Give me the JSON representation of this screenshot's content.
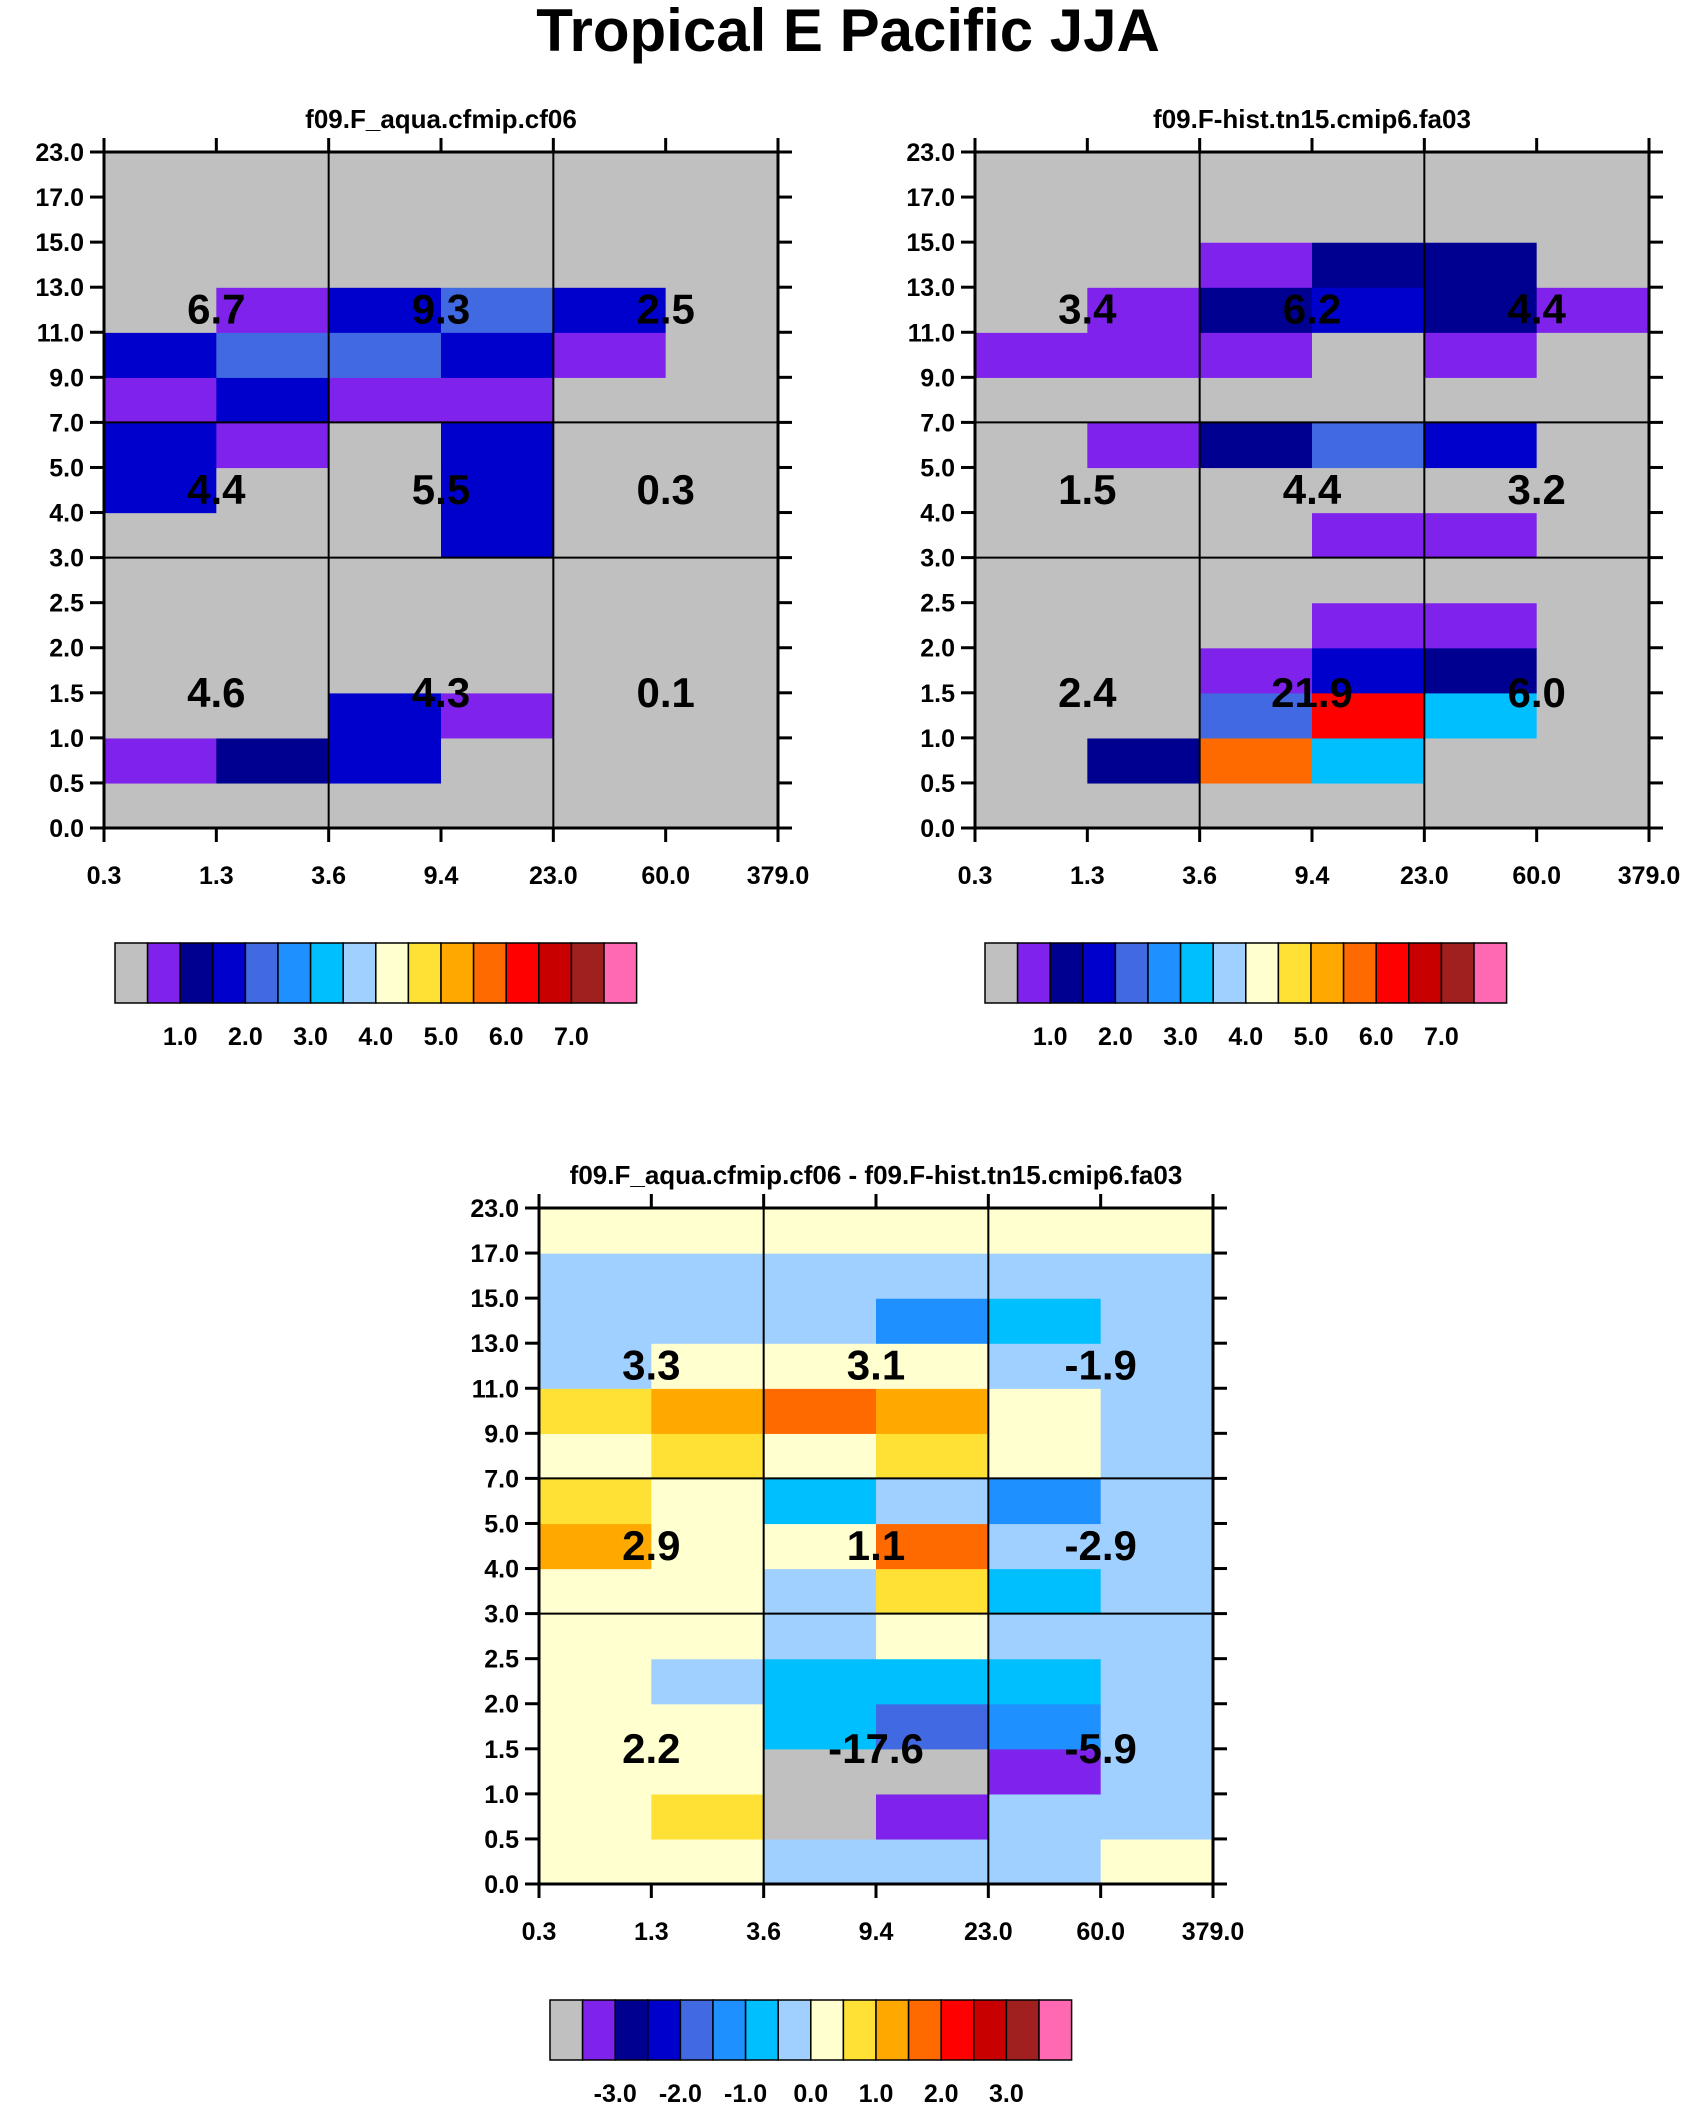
{
  "figure_title": "Tropical E Pacific JJA",
  "chart_data": [
    {
      "type": "heatmap",
      "title": "f09.F_aqua.cfmip.cf06",
      "xlabel": "",
      "ylabel": "",
      "x_ticks": [
        "0.3",
        "1.3",
        "3.6",
        "9.4",
        "23.0",
        "60.0",
        "379.0"
      ],
      "y_ticks": [
        "0.0",
        "0.5",
        "1.0",
        "1.5",
        "2.0",
        "2.5",
        "3.0",
        "4.0",
        "5.0",
        "7.0",
        "9.0",
        "11.0",
        "13.0",
        "15.0",
        "17.0",
        "23.0"
      ],
      "colorbar": {
        "colors": [
          "#C0C0C0",
          "#7F22EC",
          "#000090",
          "#0000CD",
          "#4169E1",
          "#1E90FF",
          "#00BFFF",
          "#A0D0FF",
          "#FFFFD0",
          "#FFE135",
          "#FFA800",
          "#FF6A00",
          "#FF0000",
          "#C80000",
          "#A02020",
          "#FF69B4"
        ],
        "labels": [
          "1.0",
          "2.0",
          "3.0",
          "4.0",
          "5.0",
          "6.0",
          "7.0"
        ]
      },
      "cells": [
        [
          0,
          0,
          0,
          0,
          0,
          0
        ],
        [
          1,
          2,
          3,
          0,
          0,
          0
        ],
        [
          0,
          0,
          3,
          1,
          0,
          0
        ],
        [
          0,
          0,
          0,
          0,
          0,
          0
        ],
        [
          0,
          0,
          0,
          0,
          0,
          0
        ],
        [
          0,
          0,
          0,
          0,
          0,
          0
        ],
        [
          0,
          0,
          0,
          3,
          0,
          0
        ],
        [
          3,
          0,
          0,
          3,
          0,
          0
        ],
        [
          3,
          1,
          0,
          3,
          0,
          0
        ],
        [
          1,
          3,
          1,
          1,
          0,
          0
        ],
        [
          3,
          4,
          4,
          3,
          1,
          0
        ],
        [
          0,
          1,
          3,
          4,
          3,
          0
        ],
        [
          0,
          0,
          0,
          0,
          0,
          0
        ],
        [
          0,
          0,
          0,
          0,
          0,
          0
        ],
        [
          0,
          0,
          0,
          0,
          0,
          0
        ]
      ],
      "region_values": [
        [
          "4.6",
          "4.3",
          "0.1"
        ],
        [
          "4.4",
          "5.5",
          "0.3"
        ],
        [
          "6.7",
          "9.3",
          "2.5"
        ]
      ]
    },
    {
      "type": "heatmap",
      "title": "f09.F-hist.tn15.cmip6.fa03",
      "xlabel": "",
      "ylabel": "",
      "x_ticks": [
        "0.3",
        "1.3",
        "3.6",
        "9.4",
        "23.0",
        "60.0",
        "379.0"
      ],
      "y_ticks": [
        "0.0",
        "0.5",
        "1.0",
        "1.5",
        "2.0",
        "2.5",
        "3.0",
        "4.0",
        "5.0",
        "7.0",
        "9.0",
        "11.0",
        "13.0",
        "15.0",
        "17.0",
        "23.0"
      ],
      "colorbar": {
        "colors": [
          "#C0C0C0",
          "#7F22EC",
          "#000090",
          "#0000CD",
          "#4169E1",
          "#1E90FF",
          "#00BFFF",
          "#A0D0FF",
          "#FFFFD0",
          "#FFE135",
          "#FFA800",
          "#FF6A00",
          "#FF0000",
          "#C80000",
          "#A02020",
          "#FF69B4"
        ],
        "labels": [
          "1.0",
          "2.0",
          "3.0",
          "4.0",
          "5.0",
          "6.0",
          "7.0"
        ]
      },
      "cells": [
        [
          0,
          0,
          0,
          0,
          0,
          0
        ],
        [
          0,
          2,
          11,
          6,
          0,
          0
        ],
        [
          0,
          0,
          4,
          12,
          6,
          0
        ],
        [
          0,
          0,
          1,
          3,
          2,
          0
        ],
        [
          0,
          0,
          0,
          1,
          1,
          0
        ],
        [
          0,
          0,
          0,
          0,
          0,
          0
        ],
        [
          0,
          0,
          0,
          1,
          1,
          0
        ],
        [
          0,
          0,
          0,
          0,
          0,
          0
        ],
        [
          0,
          1,
          2,
          4,
          3,
          0
        ],
        [
          0,
          0,
          0,
          0,
          0,
          0
        ],
        [
          1,
          1,
          1,
          0,
          1,
          0
        ],
        [
          0,
          1,
          2,
          3,
          2,
          1
        ],
        [
          0,
          0,
          1,
          2,
          2,
          0
        ],
        [
          0,
          0,
          0,
          0,
          0,
          0
        ],
        [
          0,
          0,
          0,
          0,
          0,
          0
        ]
      ],
      "region_values": [
        [
          "2.4",
          "21.9",
          "6.0"
        ],
        [
          "1.5",
          "4.4",
          "3.2"
        ],
        [
          "3.4",
          "6.2",
          "4.4"
        ]
      ]
    },
    {
      "type": "heatmap",
      "title": "f09.F_aqua.cfmip.cf06 - f09.F-hist.tn15.cmip6.fa03",
      "xlabel": "",
      "ylabel": "",
      "x_ticks": [
        "0.3",
        "1.3",
        "3.6",
        "9.4",
        "23.0",
        "60.0",
        "379.0"
      ],
      "y_ticks": [
        "0.0",
        "0.5",
        "1.0",
        "1.5",
        "2.0",
        "2.5",
        "3.0",
        "4.0",
        "5.0",
        "7.0",
        "9.0",
        "11.0",
        "13.0",
        "15.0",
        "17.0",
        "23.0"
      ],
      "colorbar": {
        "colors": [
          "#C0C0C0",
          "#7F22EC",
          "#000090",
          "#0000CD",
          "#4169E1",
          "#1E90FF",
          "#00BFFF",
          "#A0D0FF",
          "#FFFFD0",
          "#FFE135",
          "#FFA800",
          "#FF6A00",
          "#FF0000",
          "#C80000",
          "#A02020",
          "#FF69B4"
        ],
        "labels": [
          "-3.0",
          "-2.0",
          "-1.0",
          "0.0",
          "1.0",
          "2.0",
          "3.0"
        ]
      },
      "cells": [
        [
          8,
          8,
          7,
          7,
          7,
          8
        ],
        [
          8,
          9,
          0,
          1,
          7,
          7
        ],
        [
          8,
          8,
          0,
          0,
          1,
          7
        ],
        [
          8,
          8,
          6,
          4,
          5,
          7
        ],
        [
          8,
          7,
          6,
          6,
          6,
          7
        ],
        [
          8,
          8,
          7,
          8,
          7,
          7
        ],
        [
          8,
          8,
          7,
          9,
          6,
          7
        ],
        [
          10,
          8,
          8,
          11,
          7,
          7
        ],
        [
          9,
          8,
          6,
          7,
          5,
          7
        ],
        [
          8,
          9,
          8,
          9,
          8,
          7
        ],
        [
          9,
          10,
          11,
          10,
          8,
          7
        ],
        [
          7,
          8,
          8,
          8,
          7,
          7
        ],
        [
          7,
          7,
          7,
          5,
          6,
          7
        ],
        [
          7,
          7,
          7,
          7,
          7,
          7
        ],
        [
          8,
          8,
          8,
          8,
          8,
          8
        ]
      ],
      "region_values": [
        [
          "2.2",
          "-17.6",
          "-5.9"
        ],
        [
          "2.9",
          "1.1",
          "-2.9"
        ],
        [
          "3.3",
          "3.1",
          "-1.9"
        ]
      ]
    }
  ]
}
